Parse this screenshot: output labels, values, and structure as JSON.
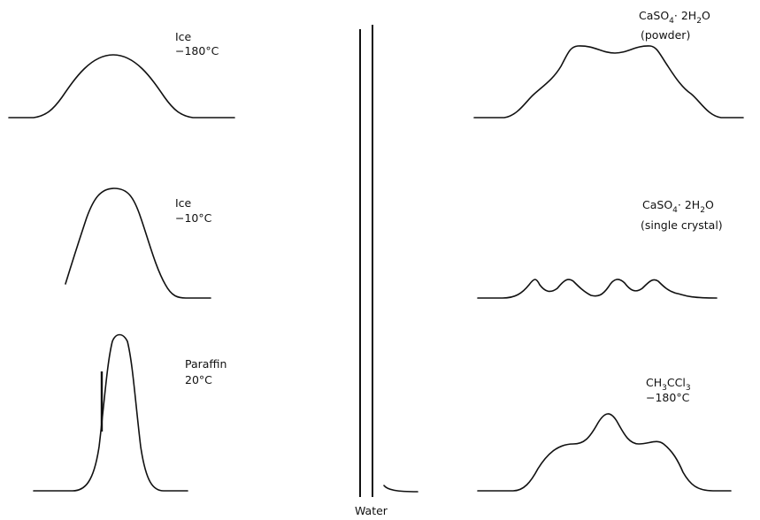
{
  "panels": {
    "ice_180": {
      "line1": "Ice",
      "line2": "−180°C"
    },
    "ice_10": {
      "line1": "Ice",
      "line2": "−10°C"
    },
    "paraffin": {
      "line1": "Paraffin",
      "line2": "20°C"
    },
    "gypsum_powder": {
      "ca": "CaSO",
      "s4": "4",
      "dot": "· 2H",
      "s2": "2",
      "o": "O",
      "note": "(powder)"
    },
    "gypsum_crystal": {
      "ca": "CaSO",
      "s4": "4",
      "dot": "· 2H",
      "s2": "2",
      "o": "O",
      "note": "(single crystal)"
    },
    "trichloroethane": {
      "ch": "CH",
      "s3a": "3",
      "ccl": "CCl",
      "s3b": "3",
      "temp": "−180°C"
    }
  },
  "center": {
    "label": "Water"
  }
}
